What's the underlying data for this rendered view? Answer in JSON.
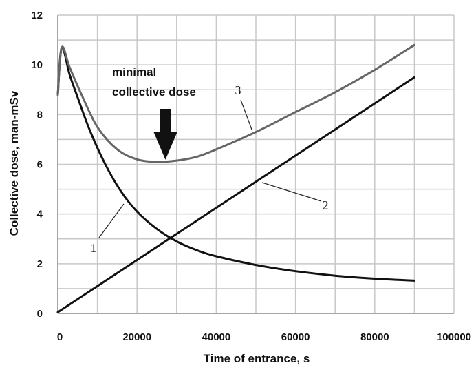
{
  "chart_data": {
    "type": "line",
    "title": "",
    "xlabel": "Time of entrance, s",
    "ylabel": "Collective dose, man-mSv",
    "xlim": [
      0,
      100000
    ],
    "ylim": [
      0,
      12
    ],
    "x_ticks": [
      "0",
      "20000",
      "40000",
      "60000",
      "80000",
      "100000"
    ],
    "y_ticks": [
      "0",
      "2",
      "4",
      "6",
      "8",
      "10",
      "12"
    ],
    "grid": true,
    "legend": "none",
    "annotation": {
      "lines": [
        "minimal",
        "collective dose"
      ],
      "points_to": {
        "x": 27000,
        "y": 6.1
      }
    },
    "series": [
      {
        "name": "1",
        "color": "#111111",
        "x": [
          0,
          1000,
          3000,
          5000,
          8000,
          12000,
          16000,
          20000,
          25000,
          30000,
          35000,
          40000,
          50000,
          60000,
          70000,
          80000,
          90000
        ],
        "y": [
          8.8,
          10.7,
          9.6,
          8.7,
          7.4,
          6.0,
          4.9,
          4.1,
          3.4,
          2.9,
          2.55,
          2.3,
          1.95,
          1.7,
          1.52,
          1.4,
          1.32
        ]
      },
      {
        "name": "2",
        "color": "#111111",
        "x": [
          0,
          90000
        ],
        "y": [
          0.05,
          9.5
        ]
      },
      {
        "name": "3",
        "color": "#666666",
        "x": [
          0,
          1000,
          3000,
          6000,
          10000,
          15000,
          20000,
          25000,
          30000,
          35000,
          40000,
          50000,
          60000,
          70000,
          80000,
          90000
        ],
        "y": [
          8.8,
          10.7,
          9.9,
          8.8,
          7.5,
          6.6,
          6.2,
          6.1,
          6.15,
          6.3,
          6.6,
          7.3,
          8.1,
          8.9,
          9.8,
          10.8
        ]
      }
    ]
  }
}
